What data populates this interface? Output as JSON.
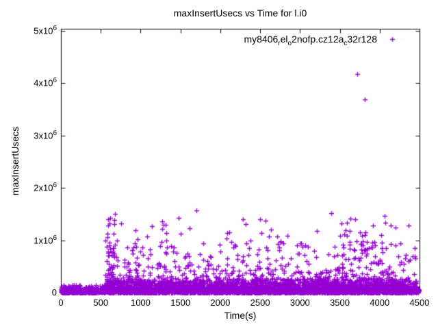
{
  "chart_data": {
    "type": "scatter",
    "title": "maxInsertUsecs vs Time for l.i0",
    "xlabel": "Time(s)",
    "ylabel": "maxInsertUsecs",
    "xlim": [
      0,
      4500
    ],
    "ylim": [
      0,
      5000000
    ],
    "grid": false,
    "border": true,
    "tick_style": "inward-mirrored",
    "xticks": [
      {
        "v": 0,
        "label": "0"
      },
      {
        "v": 500,
        "label": "500"
      },
      {
        "v": 1000,
        "label": "1000"
      },
      {
        "v": 1500,
        "label": "1500"
      },
      {
        "v": 2000,
        "label": "2000"
      },
      {
        "v": 2500,
        "label": "2500"
      },
      {
        "v": 3000,
        "label": "3000"
      },
      {
        "v": 3500,
        "label": "3500"
      },
      {
        "v": 4000,
        "label": "4000"
      },
      {
        "v": 4500,
        "label": "4500"
      }
    ],
    "yticks": [
      {
        "v": 0,
        "base": "0",
        "exp": ""
      },
      {
        "v": 1000000,
        "base": "1x10",
        "exp": "6"
      },
      {
        "v": 2000000,
        "base": "2x10",
        "exp": "6"
      },
      {
        "v": 3000000,
        "base": "3x10",
        "exp": "6"
      },
      {
        "v": 4000000,
        "base": "4x10",
        "exp": "6"
      },
      {
        "v": 5000000,
        "base": "5x10",
        "exp": "6"
      }
    ],
    "legend": {
      "position": "top-right-inside",
      "marker": "plus",
      "label_plain": "my8406_rel_o2nofp.cz12a_c32r128",
      "segments": [
        {
          "t": "my8406",
          "sub": false
        },
        {
          "t": "r",
          "sub": true
        },
        {
          "t": "el",
          "sub": false
        },
        {
          "t": "o",
          "sub": true
        },
        {
          "t": "2nofp.cz12a",
          "sub": false
        },
        {
          "t": "c",
          "sub": true
        },
        {
          "t": "32r128",
          "sub": false
        }
      ]
    },
    "series": [
      {
        "name": "my8406_rel_o2nofp.cz12a_c32r128",
        "marker": "plus",
        "color": "#9400d3"
      }
    ],
    "colors": {
      "points": "#9400d3",
      "axis": "#000000",
      "text": "#000000",
      "background": "#ffffff"
    },
    "seed": 1337,
    "point_groups": [
      {
        "name": "baseline-band-full-width",
        "x": [
          3,
          4495
        ],
        "y": [
          0,
          70000
        ],
        "count": 2600,
        "dist": "uniform"
      },
      {
        "name": "left-warmup-speckle",
        "x": [
          3,
          545
        ],
        "y": [
          0,
          150000
        ],
        "count": 450,
        "dist": "exp",
        "scale": 42000
      },
      {
        "name": "main-dense-band",
        "x": [
          555,
          4470
        ],
        "y": [
          0,
          270000
        ],
        "count": 3300,
        "dist": "exp",
        "scale": 90000
      },
      {
        "name": "mid-scatter",
        "x": [
          555,
          4470
        ],
        "y": [
          150000,
          900000
        ],
        "count": 520,
        "dist": "exp",
        "scale": 280000
      },
      {
        "name": "high-scatter",
        "x": [
          555,
          4470
        ],
        "y": [
          850000,
          1600000
        ],
        "count": 75,
        "dist": "exp",
        "scale": 260000
      },
      {
        "name": "startup-spike-600",
        "x": [
          575,
          690
        ],
        "y": [
          100000,
          1480000
        ],
        "count": 55,
        "dist": "exp",
        "scale": 500000
      },
      {
        "name": "cluster-3700-high",
        "x": [
          3580,
          3960
        ],
        "y": [
          800000,
          1500000
        ],
        "count": 25,
        "dist": "exp",
        "scale": 300000
      }
    ],
    "outlier_points": [
      [
        3718,
        4180000
      ],
      [
        3812,
        3695000
      ],
      [
        618,
        1430000
      ],
      [
        1142,
        1270000
      ],
      [
        1271,
        1360000
      ],
      [
        1477,
        1430000
      ],
      [
        1615,
        1230000
      ],
      [
        2320,
        1310000
      ],
      [
        2500,
        1400000
      ],
      [
        3693,
        1400000
      ],
      [
        4062,
        1470000
      ],
      [
        4363,
        1280000
      ],
      [
        680,
        1500000
      ],
      [
        940,
        1190000
      ]
    ]
  }
}
